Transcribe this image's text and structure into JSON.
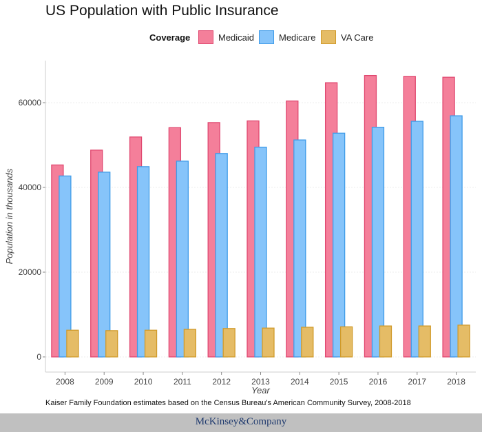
{
  "chart_data": {
    "type": "bar",
    "title": "US Population with Public Insurance",
    "xlabel": "Year",
    "ylabel": "Population in thousands",
    "categories": [
      "2008",
      "2009",
      "2010",
      "2011",
      "2012",
      "2013",
      "2014",
      "2015",
      "2016",
      "2017",
      "2018"
    ],
    "ylim": [
      0,
      70000
    ],
    "yticks": [
      0,
      20000,
      40000,
      60000
    ],
    "grid": true,
    "legend": {
      "title": "Coverage",
      "placement": "top"
    },
    "series": [
      {
        "name": "Medicaid",
        "color": "#f47f9a",
        "stroke": "#e04870",
        "values": [
          45300,
          48800,
          51900,
          54100,
          55300,
          55700,
          60400,
          64700,
          66400,
          66200,
          66000
        ]
      },
      {
        "name": "Medicare",
        "color": "#86c4fa",
        "stroke": "#3f9be8",
        "values": [
          42700,
          43600,
          44900,
          46200,
          48000,
          49500,
          51200,
          52800,
          54200,
          55600,
          56900
        ]
      },
      {
        "name": "VA Care",
        "color": "#e5bc66",
        "stroke": "#d09a2a",
        "values": [
          6300,
          6200,
          6300,
          6500,
          6700,
          6800,
          7000,
          7100,
          7300,
          7300,
          7500
        ]
      }
    ]
  },
  "caption": "Kaiser Family Foundation estimates based on the Census Bureau's American Community Survey, 2008-2018",
  "footer": {
    "brand": "McKinsey&Company"
  }
}
